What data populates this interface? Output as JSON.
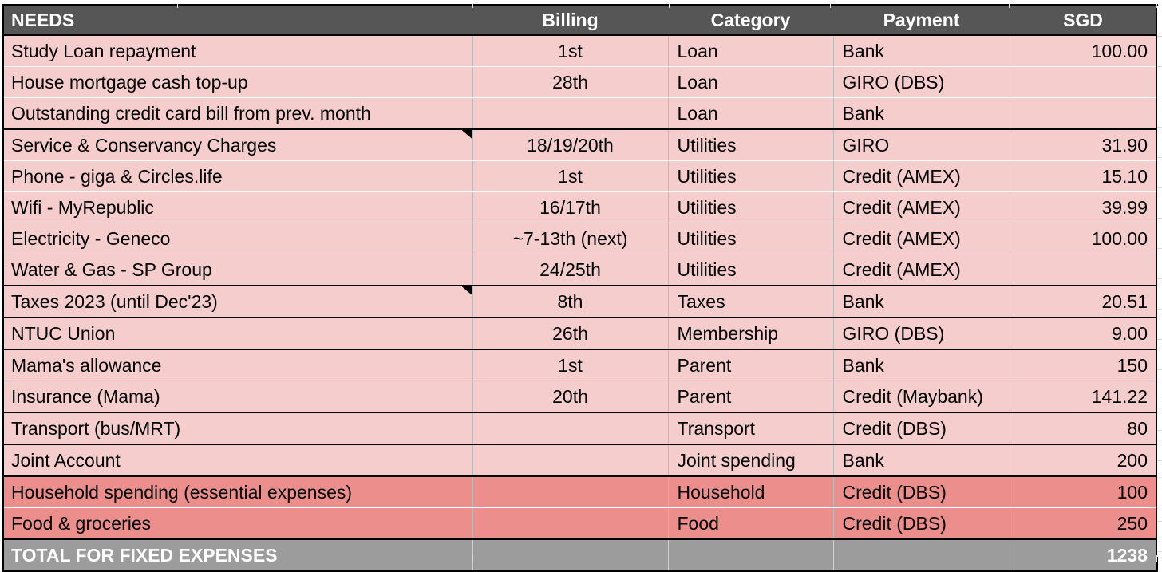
{
  "colors": {
    "header-bg": "#565656",
    "light-row": "#f5cdcc",
    "dark-row": "#ec8f8c",
    "total-bg": "#9c9c9c",
    "border-strong": "#000000"
  },
  "table": {
    "columns": [
      {
        "key": "needs",
        "label": "NEEDS"
      },
      {
        "key": "billing",
        "label": "Billing"
      },
      {
        "key": "category",
        "label": "Category"
      },
      {
        "key": "payment",
        "label": "Payment"
      },
      {
        "key": "sgd",
        "label": "SGD"
      }
    ],
    "rows": [
      {
        "shade": "light",
        "border_bottom": "thin",
        "note": false,
        "cells": {
          "needs": "Study Loan repayment",
          "billing": "1st",
          "category": "Loan",
          "payment": "Bank",
          "sgd": "100.00"
        }
      },
      {
        "shade": "light",
        "border_bottom": "thin",
        "note": false,
        "cells": {
          "needs": "House mortgage cash top-up",
          "billing": "28th",
          "category": "Loan",
          "payment": "GIRO (DBS)",
          "sgd": ""
        }
      },
      {
        "shade": "light",
        "border_bottom": "thick",
        "note": false,
        "cells": {
          "needs": "Outstanding credit card bill from prev. month",
          "billing": "",
          "category": "Loan",
          "payment": "Bank",
          "sgd": ""
        }
      },
      {
        "shade": "light",
        "border_bottom": "thin",
        "note": true,
        "cells": {
          "needs": "Service & Conservancy Charges",
          "billing": "18/19/20th",
          "category": "Utilities",
          "payment": "GIRO",
          "sgd": "31.90"
        }
      },
      {
        "shade": "light",
        "border_bottom": "thin",
        "note": false,
        "cells": {
          "needs": "Phone - giga & Circles.life",
          "billing": "1st",
          "category": "Utilities",
          "payment": "Credit (AMEX)",
          "sgd": "15.10"
        }
      },
      {
        "shade": "light",
        "border_bottom": "thin",
        "note": false,
        "cells": {
          "needs": "Wifi - MyRepublic",
          "billing": "16/17th",
          "category": "Utilities",
          "payment": "Credit (AMEX)",
          "sgd": "39.99"
        }
      },
      {
        "shade": "light",
        "border_bottom": "thin",
        "note": false,
        "cells": {
          "needs": "Electricity - Geneco",
          "billing": "~7-13th (next)",
          "category": "Utilities",
          "payment": "Credit (AMEX)",
          "sgd": "100.00"
        }
      },
      {
        "shade": "light",
        "border_bottom": "thick",
        "note": false,
        "cells": {
          "needs": "Water & Gas - SP Group",
          "billing": "24/25th",
          "category": "Utilities",
          "payment": "Credit (AMEX)",
          "sgd": ""
        }
      },
      {
        "shade": "light",
        "border_bottom": "thick",
        "note": true,
        "cells": {
          "needs": "Taxes 2023 (until Dec'23)",
          "billing": "8th",
          "category": "Taxes",
          "payment": "Bank",
          "sgd": "20.51"
        }
      },
      {
        "shade": "light",
        "border_bottom": "thick",
        "note": false,
        "cells": {
          "needs": "NTUC Union",
          "billing": "26th",
          "category": "Membership",
          "payment": "GIRO (DBS)",
          "sgd": "9.00"
        }
      },
      {
        "shade": "light",
        "border_bottom": "thin",
        "note": false,
        "cells": {
          "needs": "Mama's allowance",
          "billing": "1st",
          "category": "Parent",
          "payment": "Bank",
          "sgd": "150"
        }
      },
      {
        "shade": "light",
        "border_bottom": "thick",
        "note": false,
        "cells": {
          "needs": "Insurance (Mama)",
          "billing": "20th",
          "category": "Parent",
          "payment": "Credit (Maybank)",
          "sgd": "141.22"
        }
      },
      {
        "shade": "light",
        "border_bottom": "thick",
        "note": false,
        "cells": {
          "needs": "Transport (bus/MRT)",
          "billing": "",
          "category": "Transport",
          "payment": "Credit (DBS)",
          "sgd": "80"
        }
      },
      {
        "shade": "light",
        "border_bottom": "thick",
        "note": false,
        "cells": {
          "needs": "Joint Account",
          "billing": "",
          "category": "Joint spending",
          "payment": "Bank",
          "sgd": "200"
        }
      },
      {
        "shade": "dark",
        "border_bottom": "thin",
        "note": false,
        "cells": {
          "needs": "Household spending (essential expenses)",
          "billing": "",
          "category": "Household",
          "payment": "Credit (DBS)",
          "sgd": "100"
        }
      },
      {
        "shade": "dark",
        "border_bottom": "thick",
        "note": false,
        "cells": {
          "needs": "Food & groceries",
          "billing": "",
          "category": "Food",
          "payment": "Credit (DBS)",
          "sgd": "250"
        }
      }
    ],
    "total": {
      "label": "TOTAL FOR FIXED EXPENSES",
      "sgd": "1238"
    }
  }
}
